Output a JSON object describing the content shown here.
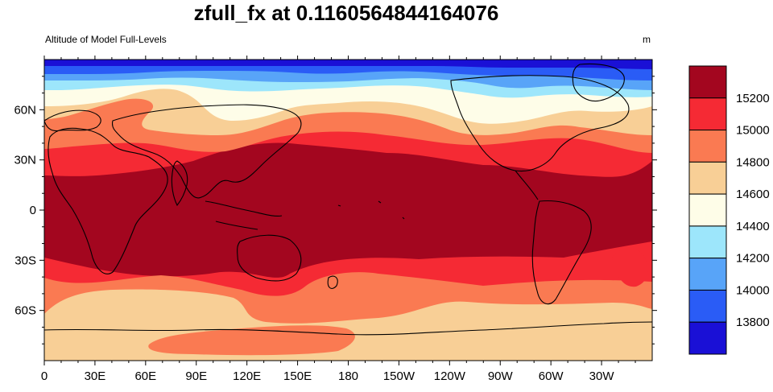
{
  "title": "zfull_fx at 0.1160564844164076",
  "subtitle_left": "Altitude of Model Full-Levels",
  "subtitle_right": "m",
  "map": {
    "projection": "cylindrical equidistant",
    "lon_range": [
      0,
      360
    ],
    "lat_range": [
      -90,
      90
    ],
    "x_ticks": [
      "0",
      "30E",
      "60E",
      "90E",
      "120E",
      "150E",
      "180",
      "150W",
      "120W",
      "90W",
      "60W",
      "30W"
    ],
    "y_ticks": [
      "60N",
      "30N",
      "0",
      "30S",
      "60S"
    ]
  },
  "colorbar": {
    "levels": [
      "13800",
      "14000",
      "14200",
      "14400",
      "14600",
      "14800",
      "15000",
      "15200"
    ],
    "colors": [
      "#1a10d6",
      "#2a5cf6",
      "#58a4f8",
      "#9de6fb",
      "#fefde8",
      "#f8cf96",
      "#fa7a52",
      "#f52a34",
      "#a3061f"
    ]
  }
}
